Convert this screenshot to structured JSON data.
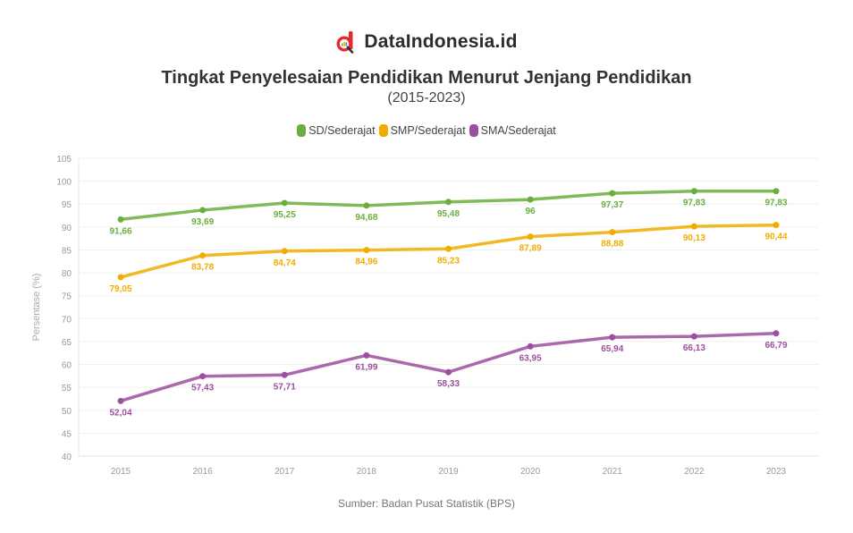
{
  "brand": {
    "name": "DataIndonesia.id",
    "logo_icon": "dataindonesia-logo-icon"
  },
  "header": {
    "title": "Tingkat Penyelesaian Pendidikan Menurut Jenjang Pendidikan",
    "subtitle": "(2015-2023)"
  },
  "legend": [
    {
      "label": "SD/Sederajat",
      "color": "#6aaf3d"
    },
    {
      "label": "SMP/Sederajat",
      "color": "#f0ad00"
    },
    {
      "label": "SMA/Sederajat",
      "color": "#9b4f9e"
    }
  ],
  "footer": {
    "source": "Sumber: Badan Pusat Statistik (BPS)"
  },
  "chart_data": {
    "type": "line",
    "title": "Tingkat Penyelesaian Pendidikan Menurut Jenjang Pendidikan",
    "subtitle": "(2015-2023)",
    "xlabel": "",
    "ylabel": "Persentase (%)",
    "ylim": [
      40,
      105
    ],
    "yticks": [
      40,
      45,
      50,
      55,
      60,
      65,
      70,
      75,
      80,
      85,
      90,
      95,
      100,
      105
    ],
    "grid": true,
    "legend_position": "top",
    "categories": [
      "2015",
      "2016",
      "2017",
      "2018",
      "2019",
      "2020",
      "2021",
      "2022",
      "2023"
    ],
    "series": [
      {
        "name": "SD/Sederajat",
        "color": "#6aaf3d",
        "values": [
          91.66,
          93.69,
          95.25,
          94.68,
          95.48,
          96,
          97.37,
          97.83,
          97.83
        ],
        "labels": [
          "91,66",
          "93,69",
          "95,25",
          "94,68",
          "95,48",
          "96",
          "97,37",
          "97,83",
          "97,83"
        ]
      },
      {
        "name": "SMP/Sederajat",
        "color": "#f0ad00",
        "values": [
          79.05,
          83.78,
          84.74,
          84.96,
          85.23,
          87.89,
          88.88,
          90.13,
          90.44
        ],
        "labels": [
          "79,05",
          "83,78",
          "84,74",
          "84,96",
          "85,23",
          "87,89",
          "88,88",
          "90,13",
          "90,44"
        ]
      },
      {
        "name": "SMA/Sederajat",
        "color": "#9b4f9e",
        "values": [
          52.04,
          57.43,
          57.71,
          61.99,
          58.33,
          63.95,
          65.94,
          66.13,
          66.79
        ],
        "labels": [
          "52,04",
          "57,43",
          "57,71",
          "61,99",
          "58,33",
          "63,95",
          "65,94",
          "66,13",
          "66,79"
        ]
      }
    ],
    "source": "Sumber: Badan Pusat Statistik (BPS)"
  }
}
